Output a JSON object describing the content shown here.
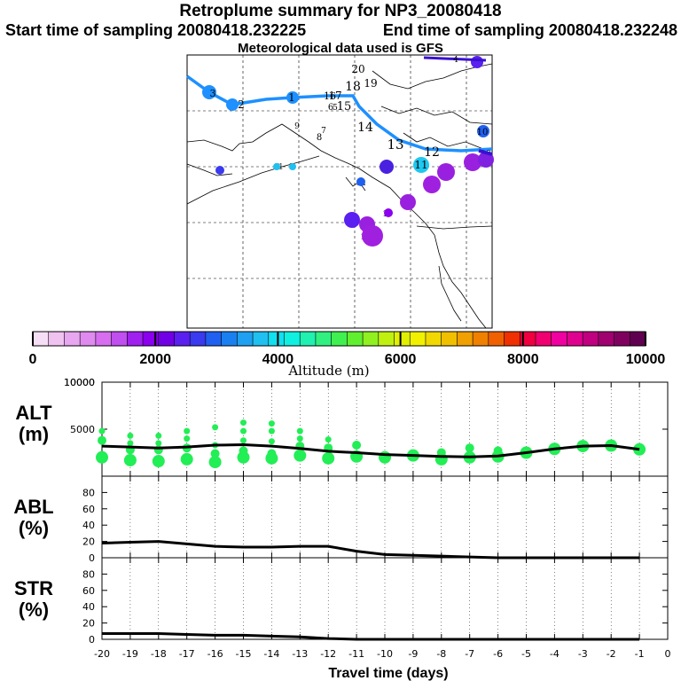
{
  "title": "Retroplume summary for NP3_20080418",
  "start_label": "Start time of sampling 20080418.232225",
  "end_label": "End time of sampling 20080418.232248",
  "met_label": "Meteorological data used is GFS",
  "colorbar": {
    "tick_labels": [
      "0",
      "2000",
      "4000",
      "6000",
      "8000",
      "10000"
    ],
    "xlabel": "Altitude (m)",
    "colors": [
      "#f6def6",
      "#efc2ef",
      "#e7a6ef",
      "#df8aef",
      "#d66eef",
      "#c04fef",
      "#a020ef",
      "#8a00ef",
      "#7200e6",
      "#5a20ef",
      "#3a3aef",
      "#2060f0",
      "#1a80f0",
      "#20a0f0",
      "#20c0f0",
      "#10e0f0",
      "#10f0e0",
      "#20f0b0",
      "#30f080",
      "#40f050",
      "#60f030",
      "#90f020",
      "#c0f010",
      "#e0f000",
      "#f0f000",
      "#f0d800",
      "#f0c000",
      "#f0a000",
      "#f08000",
      "#f06000",
      "#f03000",
      "#f00040",
      "#f00070",
      "#f000a0",
      "#e00090",
      "#c00080",
      "#a00070",
      "#800060",
      "#600050"
    ]
  },
  "map": {
    "point_labels": [
      {
        "text": "20",
        "color": "#8a2be2"
      },
      {
        "text": "19",
        "color": "#8a2be2"
      },
      {
        "text": "18",
        "color": "#8a2be2"
      },
      {
        "text": "17",
        "color": "#8a2be2"
      },
      {
        "text": "16",
        "color": "#8a2be2"
      },
      {
        "text": "15",
        "color": "#8a2be2"
      },
      {
        "text": "14",
        "color": "#6a0dad"
      },
      {
        "text": "13",
        "color": "#6a0dad"
      },
      {
        "text": "12",
        "color": "#0000ff"
      },
      {
        "text": "11",
        "color": "#00bfff"
      },
      {
        "text": "10",
        "color": "#0000ff"
      },
      {
        "text": "9",
        "color": "#0000ff"
      },
      {
        "text": "8",
        "color": "#0000ff"
      },
      {
        "text": "7",
        "color": "#0000ff"
      },
      {
        "text": "6",
        "color": "#0000ff"
      },
      {
        "text": "5",
        "color": "#0000ff"
      },
      {
        "text": "4",
        "color": "#0000ff"
      },
      {
        "text": "3",
        "color": "#0000ff"
      },
      {
        "text": "2",
        "color": "#0000ff"
      },
      {
        "text": "1",
        "color": "#0000ff"
      }
    ],
    "track_labels": [
      "20",
      "19",
      "18",
      "17",
      "16",
      "15",
      "14",
      "13",
      "12",
      "11",
      "10",
      "9",
      "8",
      "7",
      "6",
      "5",
      "4",
      "3",
      "2",
      "1"
    ]
  },
  "chart_data": [
    {
      "type": "scatter",
      "panel": "ALT",
      "ylabel": "ALT\n(m)",
      "ylabel_lines": [
        "ALT",
        "(m)"
      ],
      "ylim": [
        0,
        10000
      ],
      "yticks": [
        5000,
        10000
      ],
      "x": [
        -20,
        -19,
        -18,
        -17,
        -16,
        -15,
        -14,
        -13,
        -12,
        -11,
        -10,
        -9,
        -8,
        -7,
        -6,
        -5,
        -4,
        -3,
        -2,
        -1
      ],
      "median_line": [
        3200,
        3100,
        3000,
        3100,
        3300,
        3350,
        3200,
        2950,
        2650,
        2500,
        2300,
        2200,
        2100,
        2050,
        2150,
        2500,
        2900,
        3200,
        3250,
        2850
      ],
      "clusters": [
        {
          "x": -20,
          "ys": [
            2000,
            3800,
            4800
          ]
        },
        {
          "x": -19,
          "ys": [
            1700,
            2800,
            3500,
            4300
          ]
        },
        {
          "x": -18,
          "ys": [
            1600,
            2800,
            3500,
            4300
          ]
        },
        {
          "x": -17,
          "ys": [
            1800,
            3000,
            4000,
            4800
          ]
        },
        {
          "x": -16,
          "ys": [
            1500,
            2400,
            3300,
            5200
          ]
        },
        {
          "x": -15,
          "ys": [
            2000,
            2700,
            3800,
            4800,
            5700
          ]
        },
        {
          "x": -14,
          "ys": [
            1900,
            2400,
            3700,
            4800,
            5600
          ]
        },
        {
          "x": -13,
          "ys": [
            2200,
            3200,
            4000,
            4800
          ]
        },
        {
          "x": -12,
          "ys": [
            1900,
            3000,
            3900
          ]
        },
        {
          "x": -11,
          "ys": [
            2100,
            3300
          ]
        },
        {
          "x": -10,
          "ys": [
            2000
          ]
        },
        {
          "x": -9,
          "ys": [
            2200
          ]
        },
        {
          "x": -8,
          "ys": [
            1800,
            2500
          ]
        },
        {
          "x": -7,
          "ys": [
            2000,
            3000
          ]
        },
        {
          "x": -6,
          "ys": [
            2100,
            2700
          ]
        },
        {
          "x": -5,
          "ys": [
            2500
          ]
        },
        {
          "x": -4,
          "ys": [
            2900
          ]
        },
        {
          "x": -3,
          "ys": [
            3200
          ]
        },
        {
          "x": -2,
          "ys": [
            3250
          ]
        },
        {
          "x": -1,
          "ys": [
            2850
          ]
        }
      ],
      "color": "#22ee55"
    },
    {
      "type": "line",
      "panel": "ABL",
      "ylabel_lines": [
        "ABL",
        "(%)"
      ],
      "ylim": [
        0,
        100
      ],
      "yticks": [
        0,
        20,
        40,
        60,
        80
      ],
      "x": [
        -20,
        -19,
        -18,
        -17,
        -16,
        -15,
        -14,
        -13,
        -12,
        -11,
        -10,
        -9,
        -8,
        -7,
        -6,
        -5,
        -4,
        -3,
        -2,
        -1
      ],
      "values": [
        18,
        19,
        20,
        17,
        14,
        13,
        13,
        14,
        14,
        8,
        4,
        3,
        2,
        1,
        0,
        0,
        0,
        0,
        0,
        0
      ]
    },
    {
      "type": "line",
      "panel": "STR",
      "ylabel_lines": [
        "STR",
        "(%)"
      ],
      "ylim": [
        0,
        100
      ],
      "yticks": [
        0,
        20,
        40,
        60,
        80
      ],
      "x": [
        -20,
        -19,
        -18,
        -17,
        -16,
        -15,
        -14,
        -13,
        -12,
        -11,
        -10,
        -9,
        -8,
        -7,
        -6,
        -5,
        -4,
        -3,
        -2,
        -1
      ],
      "values": [
        7,
        7,
        7,
        6,
        5,
        5,
        4,
        3,
        1,
        0,
        0,
        0,
        0,
        0,
        0,
        0,
        0,
        0,
        0,
        0
      ]
    }
  ],
  "xaxis": {
    "tick_labels": [
      "-20",
      "-19",
      "-18",
      "-17",
      "-16",
      "-15",
      "-14",
      "-13",
      "-12",
      "-11",
      "-10",
      "-9",
      "-8",
      "-7",
      "-6",
      "-5",
      "-4",
      "-3",
      "-2",
      "-1",
      "0"
    ],
    "xlabel": "Travel time (days)"
  }
}
